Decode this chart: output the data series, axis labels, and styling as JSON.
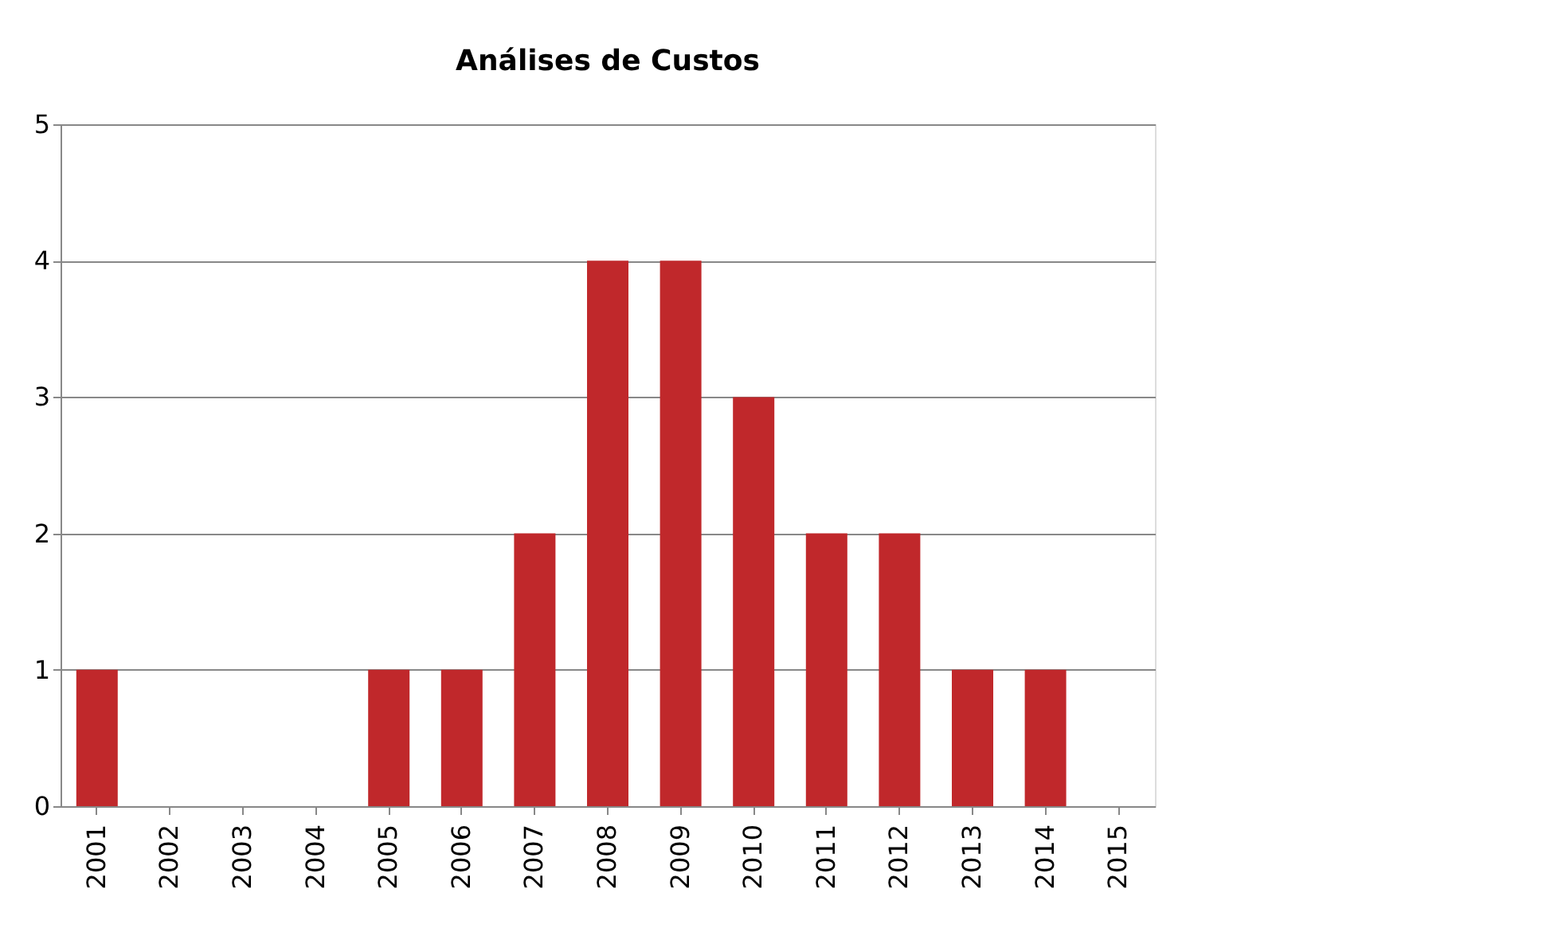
{
  "chart_data": {
    "type": "bar",
    "title": "Análises de Custos",
    "categories": [
      "2001",
      "2002",
      "2003",
      "2004",
      "2005",
      "2006",
      "2007",
      "2008",
      "2009",
      "2010",
      "2011",
      "2012",
      "2013",
      "2014",
      "2015"
    ],
    "values": [
      1,
      0,
      0,
      0,
      1,
      1,
      2,
      4,
      4,
      3,
      2,
      2,
      1,
      1,
      0
    ],
    "color": "#c0282b",
    "ylim": [
      0,
      5
    ],
    "yticks": [
      0,
      1,
      2,
      3,
      4,
      5
    ],
    "grid": "y"
  }
}
